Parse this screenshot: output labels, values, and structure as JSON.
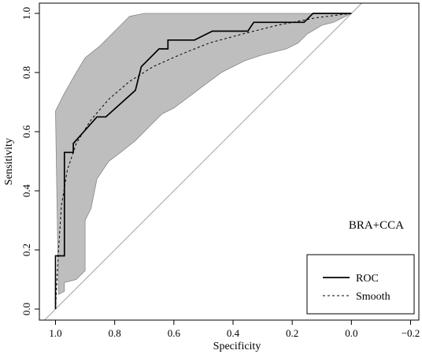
{
  "chart_data": {
    "type": "line",
    "annotation": "BRA+CCA",
    "xlabel": "Specificity",
    "ylabel": "Sensitivity",
    "xlim": [
      1.0,
      -0.2
    ],
    "ylim": [
      0.0,
      1.0
    ],
    "x_ticks": [
      1.0,
      0.8,
      0.6,
      0.4,
      0.2,
      0.0,
      -0.2
    ],
    "x_tick_labels": [
      "1.0",
      "0.8",
      "0.6",
      "0.4",
      "0.2",
      "0.0",
      "−0.2"
    ],
    "y_ticks": [
      0.0,
      0.2,
      0.4,
      0.6,
      0.8,
      1.0
    ],
    "y_tick_labels": [
      "0.0",
      "0.2",
      "0.4",
      "0.6",
      "0.8",
      "1.0"
    ],
    "grid": false,
    "legend_position": "bottom-right",
    "reference_line": [
      [
        1.0,
        0.0
      ],
      [
        0.0,
        1.0
      ]
    ],
    "series": [
      {
        "name": "ROC",
        "style": "solid",
        "points": [
          [
            1.0,
            0.0
          ],
          [
            1.0,
            0.18
          ],
          [
            0.97,
            0.18
          ],
          [
            0.97,
            0.53
          ],
          [
            0.94,
            0.53
          ],
          [
            0.94,
            0.56
          ],
          [
            0.86,
            0.65
          ],
          [
            0.83,
            0.65
          ],
          [
            0.73,
            0.74
          ],
          [
            0.71,
            0.82
          ],
          [
            0.65,
            0.88
          ],
          [
            0.62,
            0.88
          ],
          [
            0.62,
            0.91
          ],
          [
            0.53,
            0.91
          ],
          [
            0.47,
            0.94
          ],
          [
            0.35,
            0.94
          ],
          [
            0.33,
            0.97
          ],
          [
            0.16,
            0.97
          ],
          [
            0.13,
            1.0
          ],
          [
            0.0,
            1.0
          ]
        ]
      },
      {
        "name": "Smooth",
        "style": "dashed",
        "points": [
          [
            1.0,
            0.0
          ],
          [
            0.99,
            0.2
          ],
          [
            0.98,
            0.35
          ],
          [
            0.96,
            0.47
          ],
          [
            0.93,
            0.56
          ],
          [
            0.88,
            0.64
          ],
          [
            0.82,
            0.71
          ],
          [
            0.75,
            0.77
          ],
          [
            0.67,
            0.82
          ],
          [
            0.58,
            0.86
          ],
          [
            0.48,
            0.9
          ],
          [
            0.37,
            0.93
          ],
          [
            0.25,
            0.96
          ],
          [
            0.12,
            0.985
          ],
          [
            0.0,
            1.0
          ]
        ]
      }
    ],
    "confidence_band": {
      "upper": [
        [
          1.0,
          0.67
        ],
        [
          0.97,
          0.73
        ],
        [
          0.93,
          0.8
        ],
        [
          0.9,
          0.85
        ],
        [
          0.85,
          0.89
        ],
        [
          0.81,
          0.93
        ],
        [
          0.78,
          0.96
        ],
        [
          0.75,
          0.99
        ],
        [
          0.7,
          1.0
        ],
        [
          0.0,
          1.0
        ]
      ],
      "lower": [
        [
          0.99,
          0.05
        ],
        [
          0.97,
          0.06
        ],
        [
          0.97,
          0.09
        ],
        [
          0.93,
          0.1
        ],
        [
          0.9,
          0.13
        ],
        [
          0.9,
          0.3
        ],
        [
          0.88,
          0.34
        ],
        [
          0.86,
          0.44
        ],
        [
          0.82,
          0.5
        ],
        [
          0.78,
          0.53
        ],
        [
          0.73,
          0.57
        ],
        [
          0.68,
          0.62
        ],
        [
          0.64,
          0.66
        ],
        [
          0.6,
          0.68
        ],
        [
          0.56,
          0.71
        ],
        [
          0.52,
          0.74
        ],
        [
          0.48,
          0.77
        ],
        [
          0.44,
          0.8
        ],
        [
          0.4,
          0.82
        ],
        [
          0.36,
          0.84
        ],
        [
          0.3,
          0.86
        ],
        [
          0.22,
          0.88
        ],
        [
          0.18,
          0.9
        ],
        [
          0.15,
          0.93
        ],
        [
          0.1,
          0.96
        ],
        [
          0.06,
          0.97
        ],
        [
          0.04,
          0.98
        ],
        [
          0.0,
          1.0
        ]
      ]
    },
    "colors": {
      "band_fill": "#bebebe",
      "band_stroke": "#888888",
      "line": "#000000",
      "reference": "#a0a0a0"
    }
  }
}
